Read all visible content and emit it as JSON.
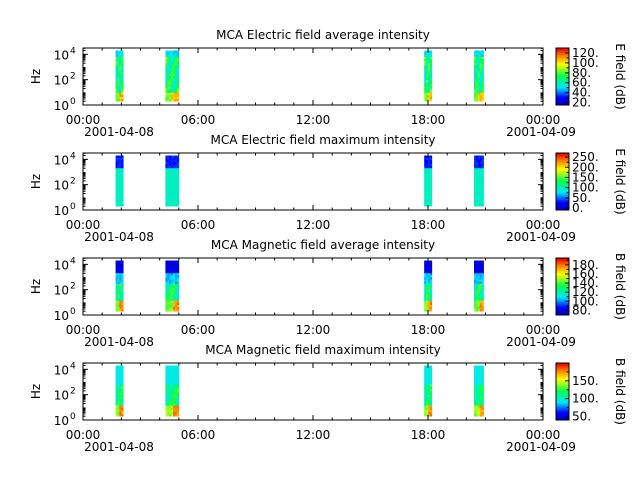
{
  "chart_data": [
    {
      "type": "heatmap",
      "title": "MCA  Electric field average intensity",
      "ylabel": "Hz",
      "colorbar_label": "E field (dB)",
      "colorbar_ticks": [
        "20.",
        "40.",
        "60.",
        "80.",
        "100.",
        "120."
      ],
      "colorbar_range": [
        15,
        130
      ],
      "y_scale": "log",
      "y_ticks": [
        {
          "exp": "0"
        },
        {
          "exp": "2"
        },
        {
          "exp": "4"
        }
      ],
      "ylim_exp": [
        0,
        4.5
      ],
      "x_ticks": [
        "00:00",
        "06:00",
        "12:00",
        "18:00",
        "00:00"
      ],
      "x_hours": [
        0,
        6,
        12,
        18,
        24
      ],
      "xlim_hours": [
        0,
        24
      ],
      "date_start": "2001-04-08",
      "date_end": "2001-04-09",
      "data_intervals_hours": [
        [
          1.7,
          2.1
        ],
        [
          4.3,
          5.0
        ],
        [
          17.8,
          18.2
        ],
        [
          20.4,
          20.9
        ]
      ],
      "freq_range_exp": [
        0.3,
        4.3
      ],
      "colormap": "rainbow",
      "pattern": "avg_e"
    },
    {
      "type": "heatmap",
      "title": "MCA  Electric field maximum intensity",
      "ylabel": "Hz",
      "colorbar_label": "E field (dB)",
      "colorbar_ticks": [
        "0.",
        "50.",
        "100.",
        "150.",
        "200.",
        "250."
      ],
      "colorbar_range": [
        -10,
        270
      ],
      "y_scale": "log",
      "y_ticks": [
        {
          "exp": "0"
        },
        {
          "exp": "2"
        },
        {
          "exp": "4"
        }
      ],
      "ylim_exp": [
        0,
        4.5
      ],
      "x_ticks": [
        "00:00",
        "06:00",
        "12:00",
        "18:00",
        "00:00"
      ],
      "x_hours": [
        0,
        6,
        12,
        18,
        24
      ],
      "xlim_hours": [
        0,
        24
      ],
      "date_start": "2001-04-08",
      "date_end": "2001-04-09",
      "data_intervals_hours": [
        [
          1.7,
          2.1
        ],
        [
          4.3,
          5.0
        ],
        [
          17.8,
          18.2
        ],
        [
          20.4,
          20.9
        ]
      ],
      "freq_range_exp": [
        0.3,
        4.3
      ],
      "colormap": "rainbow",
      "pattern": "max_e"
    },
    {
      "type": "heatmap",
      "title": "MCA  Magnetic field average intensity",
      "ylabel": "Hz",
      "colorbar_label": "B field (dB)",
      "colorbar_ticks": [
        "80.",
        "100.",
        "120.",
        "140.",
        "160.",
        "180."
      ],
      "colorbar_range": [
        70,
        195
      ],
      "y_scale": "log",
      "y_ticks": [
        {
          "exp": "0"
        },
        {
          "exp": "2"
        },
        {
          "exp": "4"
        }
      ],
      "ylim_exp": [
        0,
        4.5
      ],
      "x_ticks": [
        "00:00",
        "06:00",
        "12:00",
        "18:00",
        "00:00"
      ],
      "x_hours": [
        0,
        6,
        12,
        18,
        24
      ],
      "xlim_hours": [
        0,
        24
      ],
      "date_start": "2001-04-08",
      "date_end": "2001-04-09",
      "data_intervals_hours": [
        [
          1.7,
          2.1
        ],
        [
          4.3,
          5.0
        ],
        [
          17.8,
          18.2
        ],
        [
          20.4,
          20.9
        ]
      ],
      "freq_range_exp": [
        0.3,
        4.3
      ],
      "colormap": "rainbow",
      "pattern": "avg_b"
    },
    {
      "type": "heatmap",
      "title": "MCA  Magnetic field maximum intensity",
      "ylabel": "Hz",
      "colorbar_label": "B field (dB)",
      "colorbar_ticks": [
        "50.",
        "100.",
        "150."
      ],
      "colorbar_range": [
        40,
        200
      ],
      "y_scale": "log",
      "y_ticks": [
        {
          "exp": "0"
        },
        {
          "exp": "2"
        },
        {
          "exp": "4"
        }
      ],
      "ylim_exp": [
        0,
        4.5
      ],
      "x_ticks": [
        "00:00",
        "06:00",
        "12:00",
        "18:00",
        "00:00"
      ],
      "x_hours": [
        0,
        6,
        12,
        18,
        24
      ],
      "xlim_hours": [
        0,
        24
      ],
      "date_start": "2001-04-08",
      "date_end": "2001-04-09",
      "data_intervals_hours": [
        [
          1.7,
          2.1
        ],
        [
          4.3,
          5.0
        ],
        [
          17.8,
          18.2
        ],
        [
          20.4,
          20.9
        ]
      ],
      "freq_range_exp": [
        0.3,
        4.3
      ],
      "colormap": "rainbow",
      "pattern": "max_b"
    }
  ]
}
